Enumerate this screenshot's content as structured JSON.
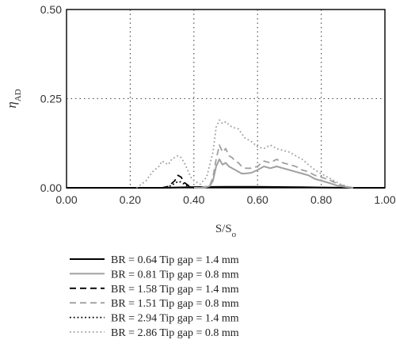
{
  "chart_data": {
    "type": "line",
    "title": "",
    "xlabel": "S/S",
    "xlabel_sub": "o",
    "ylabel": "η",
    "ylabel_sub": "AD",
    "xlim": [
      0,
      1
    ],
    "ylim": [
      0,
      0.5
    ],
    "xticks": [
      "0.00",
      "0.20",
      "0.40",
      "0.60",
      "0.80",
      "1.00"
    ],
    "yticks": [
      "0.00",
      "0.25",
      "0.50"
    ],
    "grid": "dotted",
    "legend_position": "below",
    "series": [
      {
        "name": "BR = 0.64 Tip gap = 1.4 mm",
        "style": "solid",
        "color": "#000000",
        "x": [
          0.0,
          0.2,
          0.3,
          0.4,
          0.5,
          0.6,
          0.7,
          0.8,
          0.9,
          1.0
        ],
        "y": [
          0.0,
          0.0,
          0.0,
          0.002,
          0.003,
          0.003,
          0.002,
          0.001,
          0.0,
          0.0
        ]
      },
      {
        "name": "BR = 0.81 Tip gap = 0.8 mm",
        "style": "solid",
        "color": "#a0a0a0",
        "x": [
          0.4,
          0.43,
          0.45,
          0.46,
          0.47,
          0.48,
          0.49,
          0.5,
          0.51,
          0.52,
          0.53,
          0.54,
          0.55,
          0.56,
          0.58,
          0.6,
          0.62,
          0.64,
          0.66,
          0.68,
          0.7,
          0.72,
          0.74,
          0.76,
          0.78,
          0.8,
          0.83,
          0.85,
          0.88,
          0.9
        ],
        "y": [
          0.0,
          0.0,
          0.005,
          0.02,
          0.06,
          0.08,
          0.065,
          0.07,
          0.06,
          0.055,
          0.05,
          0.045,
          0.04,
          0.04,
          0.042,
          0.05,
          0.06,
          0.055,
          0.06,
          0.055,
          0.05,
          0.045,
          0.04,
          0.035,
          0.025,
          0.02,
          0.012,
          0.006,
          0.002,
          0.0
        ]
      },
      {
        "name": "BR = 1.58 Tip gap = 1.4 mm",
        "style": "dashed",
        "color": "#000000",
        "x": [
          0.3,
          0.32,
          0.34,
          0.35,
          0.36,
          0.37,
          0.38,
          0.39,
          0.4
        ],
        "y": [
          0.0,
          0.004,
          0.02,
          0.035,
          0.03,
          0.015,
          0.008,
          0.002,
          0.0
        ]
      },
      {
        "name": "BR = 1.51 Tip gap = 0.8 mm",
        "style": "dashed",
        "color": "#a0a0a0",
        "x": [
          0.42,
          0.45,
          0.46,
          0.47,
          0.48,
          0.49,
          0.5,
          0.51,
          0.52,
          0.53,
          0.54,
          0.55,
          0.56,
          0.58,
          0.6,
          0.62,
          0.64,
          0.66,
          0.68,
          0.7,
          0.72,
          0.74,
          0.76,
          0.78,
          0.8,
          0.83,
          0.86,
          0.9
        ],
        "y": [
          0.0,
          0.006,
          0.03,
          0.08,
          0.12,
          0.1,
          0.11,
          0.09,
          0.085,
          0.075,
          0.07,
          0.06,
          0.055,
          0.055,
          0.06,
          0.075,
          0.07,
          0.08,
          0.07,
          0.065,
          0.06,
          0.05,
          0.045,
          0.035,
          0.03,
          0.02,
          0.008,
          0.0
        ]
      },
      {
        "name": "BR = 2.94 Tip gap = 1.4 mm",
        "style": "dotted",
        "color": "#000000",
        "x": [
          0.3,
          0.32,
          0.34,
          0.35,
          0.36,
          0.37,
          0.38,
          0.39,
          0.4
        ],
        "y": [
          0.0,
          0.003,
          0.012,
          0.018,
          0.016,
          0.01,
          0.005,
          0.002,
          0.0
        ]
      },
      {
        "name": "BR = 2.86 Tip gap = 0.8 mm",
        "style": "dotted",
        "color": "#a0a0a0",
        "x": [
          0.22,
          0.25,
          0.27,
          0.29,
          0.3,
          0.31,
          0.32,
          0.33,
          0.34,
          0.35,
          0.36,
          0.37,
          0.38,
          0.39,
          0.4,
          0.42,
          0.44,
          0.46,
          0.47,
          0.48,
          0.49,
          0.5,
          0.52,
          0.54,
          0.56,
          0.58,
          0.6,
          0.62,
          0.64,
          0.66,
          0.68,
          0.7,
          0.72,
          0.74,
          0.76,
          0.78,
          0.8,
          0.82,
          0.84,
          0.86,
          0.88,
          0.9
        ],
        "y": [
          0.0,
          0.02,
          0.045,
          0.06,
          0.075,
          0.07,
          0.065,
          0.08,
          0.085,
          0.09,
          0.085,
          0.07,
          0.05,
          0.03,
          0.02,
          0.01,
          0.03,
          0.1,
          0.17,
          0.19,
          0.18,
          0.185,
          0.17,
          0.165,
          0.14,
          0.13,
          0.115,
          0.11,
          0.12,
          0.11,
          0.105,
          0.1,
          0.09,
          0.08,
          0.065,
          0.05,
          0.04,
          0.03,
          0.02,
          0.01,
          0.004,
          0.0
        ]
      }
    ]
  }
}
